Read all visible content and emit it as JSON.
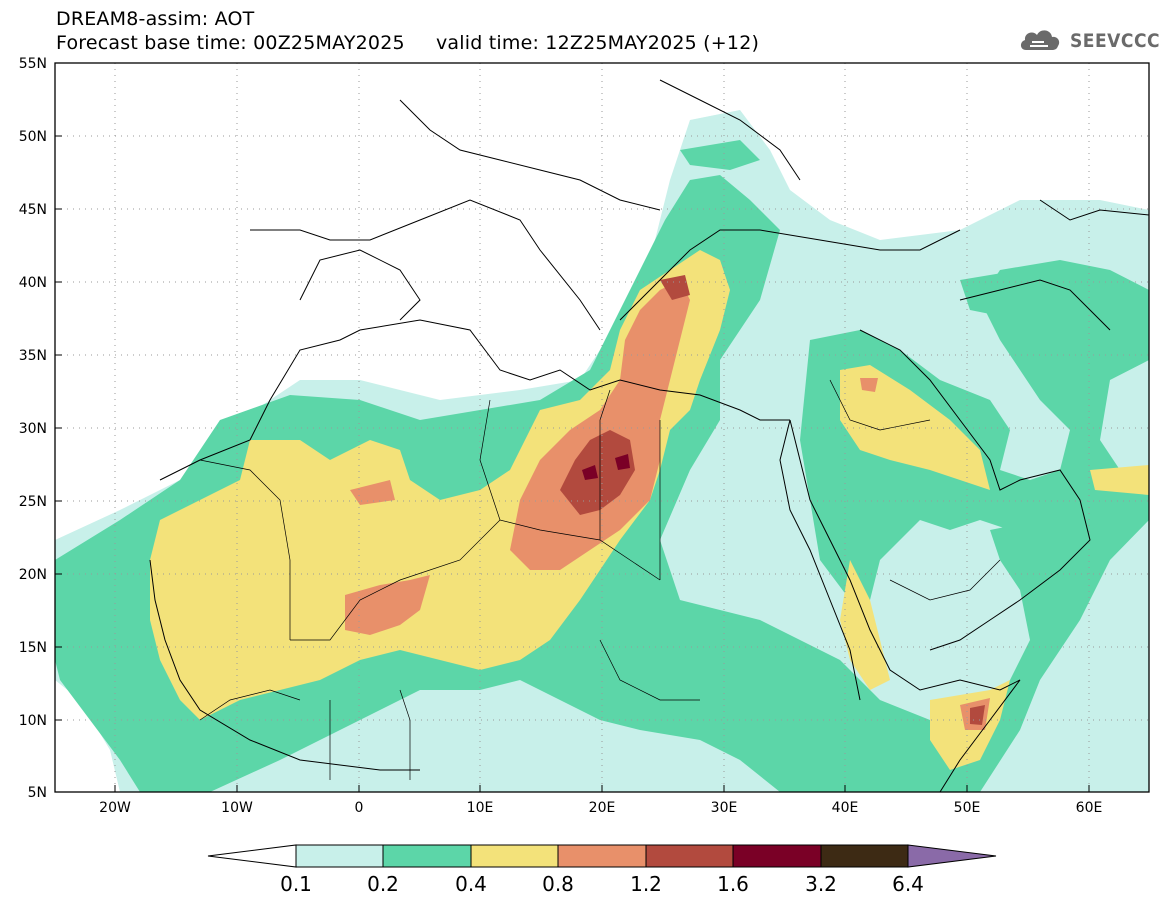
{
  "header": {
    "model_line": "DREAM8-assim: AOT",
    "base_time": "Forecast base time: 00Z25MAY2025",
    "valid_time": "valid time: 12Z25MAY2025 (+12)",
    "logo_text": "SEEVCCC"
  },
  "axes": {
    "lat_labels": [
      "55N",
      "50N",
      "45N",
      "40N",
      "35N",
      "30N",
      "25N",
      "20N",
      "15N",
      "10N",
      "5N"
    ],
    "lat_values": [
      55,
      50,
      45,
      40,
      35,
      30,
      25,
      20,
      15,
      10,
      5
    ],
    "lon_labels": [
      "20W",
      "10W",
      "0",
      "10E",
      "20E",
      "30E",
      "40E",
      "50E",
      "60E"
    ],
    "lon_values": [
      -20,
      -10,
      0,
      10,
      20,
      30,
      40,
      50,
      60
    ],
    "lon_range": [
      -25,
      65
    ],
    "lat_range": [
      5,
      55
    ]
  },
  "colorbar": {
    "levels": [
      "0.1",
      "0.2",
      "0.4",
      "0.8",
      "1.2",
      "1.6",
      "3.2",
      "6.4"
    ],
    "colors": [
      "#ffffff",
      "#c8f0ea",
      "#5cd6a8",
      "#f3e27a",
      "#e8906a",
      "#b24a3e",
      "#7a0026",
      "#3d2a14",
      "#8a6aa8"
    ]
  },
  "map_colors": {
    "c1": "#c8f0ea",
    "c2": "#5cd6a8",
    "c3": "#f3e27a",
    "c4": "#e8906a",
    "c5": "#b24a3e",
    "c6": "#7a0026"
  }
}
